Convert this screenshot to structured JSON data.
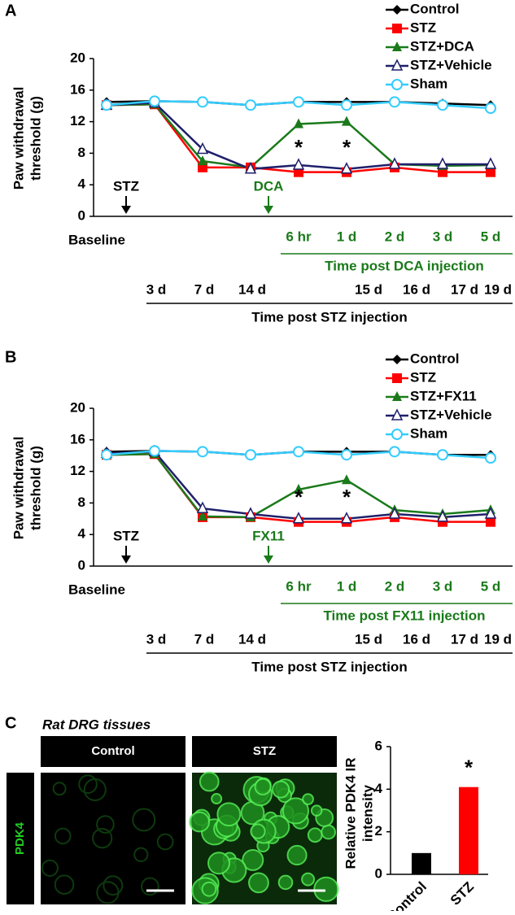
{
  "panels": [
    "A",
    "B",
    "C"
  ],
  "chart_data": [
    {
      "type": "line",
      "ylabel": [
        "Paw withdrawal",
        "threshold (g)"
      ],
      "ylim": [
        0,
        20
      ],
      "yticks": [
        0,
        4,
        8,
        12,
        16,
        20
      ],
      "categories": [
        "Baseline",
        null,
        null,
        null,
        null,
        null,
        null,
        null,
        null
      ],
      "x_rows": [
        {
          "label": "Time post DCA injection",
          "color": "#1a7a1a",
          "ticks": [
            null,
            null,
            null,
            null,
            "6 hr",
            "1 d",
            "2 d",
            "3 d",
            "5 d"
          ]
        },
        {
          "label": "Time post STZ injection",
          "color": "#000000",
          "ticks": [
            null,
            "3 d",
            "7 d",
            "14 d",
            null,
            "15 d",
            "16 d",
            "17 d",
            "19 d"
          ]
        }
      ],
      "arrows": [
        {
          "label": "STZ",
          "color": "#000000"
        },
        {
          "label": "DCA",
          "color": "#1a7a1a"
        }
      ],
      "significance": [
        null,
        null,
        null,
        null,
        "*",
        "*",
        null,
        null,
        null
      ],
      "series": [
        {
          "name": "Control",
          "color": "#000000",
          "marker": "diamond",
          "values": [
            14.5,
            14.6,
            14.5,
            14.1,
            14.5,
            14.5,
            14.5,
            14.3,
            14.1
          ]
        },
        {
          "name": "STZ",
          "color": "#ff0000",
          "marker": "square",
          "values": [
            14.1,
            14.2,
            6.2,
            6.2,
            5.6,
            5.6,
            6.2,
            5.6,
            5.6
          ]
        },
        {
          "name": "STZ+DCA",
          "color": "#1a7a1a",
          "marker": "triangle",
          "values": [
            14.1,
            14.2,
            7.0,
            6.2,
            11.7,
            12.0,
            6.6,
            6.4,
            6.5
          ]
        },
        {
          "name": "STZ+Vehicle",
          "color": "#1f1f6b",
          "marker": "open-triangle",
          "values": [
            14.1,
            14.4,
            8.5,
            6.0,
            6.5,
            6.0,
            6.6,
            6.6,
            6.6
          ]
        },
        {
          "name": "Sham",
          "color": "#33ccff",
          "marker": "open-circle",
          "values": [
            14.1,
            14.6,
            14.5,
            14.1,
            14.5,
            14.1,
            14.5,
            14.1,
            13.7
          ]
        }
      ]
    },
    {
      "type": "line",
      "ylabel": [
        "Paw withdrawal",
        "threshold (g)"
      ],
      "ylim": [
        0,
        20
      ],
      "yticks": [
        0,
        4,
        8,
        12,
        16,
        20
      ],
      "categories": [
        "Baseline",
        null,
        null,
        null,
        null,
        null,
        null,
        null,
        null
      ],
      "x_rows": [
        {
          "label": "Time post FX11 injection",
          "color": "#1a7a1a",
          "ticks": [
            null,
            null,
            null,
            null,
            "6 hr",
            "1 d",
            "2 d",
            "3 d",
            "5 d"
          ]
        },
        {
          "label": "Time post STZ injection",
          "color": "#000000",
          "ticks": [
            null,
            "3 d",
            "7 d",
            "14 d",
            null,
            "15 d",
            "16 d",
            "17 d",
            "19 d"
          ]
        }
      ],
      "arrows": [
        {
          "label": "STZ",
          "color": "#000000"
        },
        {
          "label": "FX11",
          "color": "#1a7a1a"
        }
      ],
      "significance": [
        null,
        null,
        null,
        null,
        "*",
        "*",
        null,
        null,
        null
      ],
      "series": [
        {
          "name": "Control",
          "color": "#000000",
          "marker": "diamond",
          "values": [
            14.5,
            14.6,
            14.5,
            14.1,
            14.5,
            14.5,
            14.5,
            14.1,
            14.1
          ]
        },
        {
          "name": "STZ",
          "color": "#ff0000",
          "marker": "square",
          "values": [
            14.1,
            14.2,
            6.2,
            6.2,
            5.6,
            5.6,
            6.2,
            5.6,
            5.6
          ]
        },
        {
          "name": "STZ+FX11",
          "color": "#1a7a1a",
          "marker": "triangle",
          "values": [
            14.1,
            14.2,
            6.3,
            6.2,
            9.7,
            10.9,
            7.1,
            6.6,
            7.1
          ]
        },
        {
          "name": "STZ+Vehicle",
          "color": "#1f1f6b",
          "marker": "open-triangle",
          "values": [
            14.3,
            14.5,
            7.3,
            6.6,
            6.0,
            6.0,
            6.6,
            6.2,
            6.6
          ]
        },
        {
          "name": "Sham",
          "color": "#33ccff",
          "marker": "open-circle",
          "values": [
            14.1,
            14.6,
            14.5,
            14.1,
            14.5,
            14.1,
            14.5,
            14.1,
            13.7
          ]
        }
      ]
    },
    {
      "type": "bar",
      "images": {
        "title": "Rat DRG tissues",
        "columns": [
          "Control",
          "STZ"
        ],
        "row_label": "PDK4"
      },
      "ylabel": [
        "Relative PDK4 IR",
        "intensity"
      ],
      "ylim": [
        0,
        6
      ],
      "yticks": [
        0,
        2,
        4,
        6
      ],
      "categories": [
        "Control",
        "STZ"
      ],
      "values": [
        1.0,
        4.1
      ],
      "colors": [
        "#000000",
        "#ff0000"
      ],
      "significance": [
        null,
        "*"
      ]
    }
  ]
}
